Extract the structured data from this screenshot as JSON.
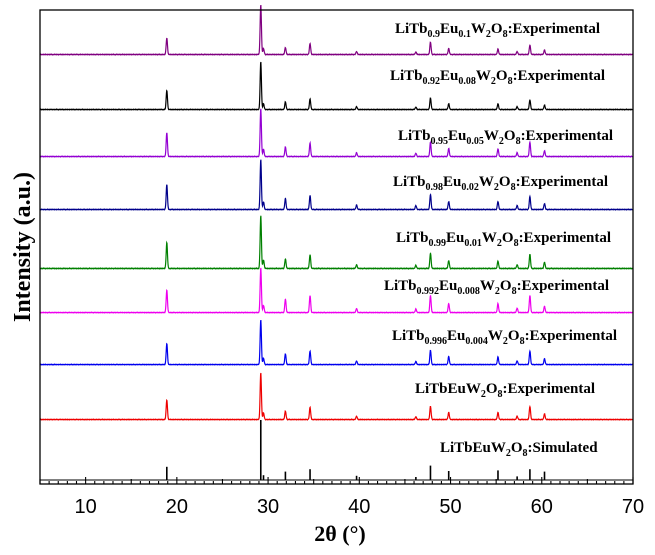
{
  "chart_data": {
    "type": "line",
    "xlabel": "2θ (°)",
    "ylabel": "Intensity (a.u.)",
    "xlim": [
      5,
      70
    ],
    "xticks": [
      10,
      20,
      30,
      40,
      50,
      60,
      70
    ],
    "grid": false,
    "legend": "none",
    "peaks_2theta": [
      18.9,
      29.2,
      29.5,
      31.9,
      34.6,
      39.7,
      46.2,
      47.8,
      49.8,
      55.2,
      57.3,
      58.7,
      60.3
    ],
    "series": [
      {
        "name_parts": [
          [
            "LiTb",
            ""
          ],
          [
            "0.9",
            "sub"
          ],
          [
            "Eu",
            ""
          ],
          [
            "0.1",
            "sub"
          ],
          [
            "W",
            ""
          ],
          [
            "2",
            "sub"
          ],
          [
            "O",
            ""
          ],
          [
            "8",
            "sub"
          ],
          [
            ":Experimental",
            ""
          ]
        ],
        "color": "#800080",
        "intensities": [
          0.33,
          1.0,
          0.12,
          0.14,
          0.22,
          0.06,
          0.05,
          0.25,
          0.12,
          0.11,
          0.06,
          0.19,
          0.09
        ]
      },
      {
        "name_parts": [
          [
            "LiTb",
            ""
          ],
          [
            "0.92",
            "sub"
          ],
          [
            "Eu",
            ""
          ],
          [
            "0.08",
            "sub"
          ],
          [
            "W",
            ""
          ],
          [
            "2",
            "sub"
          ],
          [
            "O",
            ""
          ],
          [
            "8",
            "sub"
          ],
          [
            ":Experimental",
            ""
          ]
        ],
        "color": "#000000",
        "intensities": [
          0.4,
          1.0,
          0.12,
          0.16,
          0.22,
          0.06,
          0.05,
          0.24,
          0.12,
          0.12,
          0.06,
          0.2,
          0.09
        ]
      },
      {
        "name_parts": [
          [
            "LiTb",
            ""
          ],
          [
            "0.95",
            "sub"
          ],
          [
            "Eu",
            ""
          ],
          [
            "0.05",
            "sub"
          ],
          [
            "W",
            ""
          ],
          [
            "2",
            "sub"
          ],
          [
            "O",
            ""
          ],
          [
            "8",
            "sub"
          ],
          [
            ":Experimental",
            ""
          ]
        ],
        "color": "#9400d3",
        "intensities": [
          0.5,
          1.0,
          0.15,
          0.2,
          0.28,
          0.08,
          0.07,
          0.3,
          0.17,
          0.16,
          0.08,
          0.3,
          0.12
        ]
      },
      {
        "name_parts": [
          [
            "LiTb",
            ""
          ],
          [
            "0.98",
            "sub"
          ],
          [
            "Eu",
            ""
          ],
          [
            "0.02",
            "sub"
          ],
          [
            "W",
            ""
          ],
          [
            "2",
            "sub"
          ],
          [
            "O",
            ""
          ],
          [
            "8",
            "sub"
          ],
          [
            ":Experimental",
            ""
          ]
        ],
        "color": "#00008b",
        "intensities": [
          0.5,
          1.0,
          0.15,
          0.22,
          0.28,
          0.09,
          0.08,
          0.3,
          0.16,
          0.16,
          0.08,
          0.26,
          0.12
        ]
      },
      {
        "name_parts": [
          [
            "LiTb",
            ""
          ],
          [
            "0.99",
            "sub"
          ],
          [
            "Eu",
            ""
          ],
          [
            "0.01",
            "sub"
          ],
          [
            "W",
            ""
          ],
          [
            "2",
            "sub"
          ],
          [
            "O",
            ""
          ],
          [
            "8",
            "sub"
          ],
          [
            ":Experimental",
            ""
          ]
        ],
        "color": "#008000",
        "intensities": [
          0.49,
          1.0,
          0.16,
          0.18,
          0.26,
          0.07,
          0.06,
          0.29,
          0.15,
          0.14,
          0.07,
          0.27,
          0.12
        ]
      },
      {
        "name_parts": [
          [
            "LiTb",
            ""
          ],
          [
            "0.992",
            "sub"
          ],
          [
            "Eu",
            ""
          ],
          [
            "0.008",
            "sub"
          ],
          [
            "W",
            ""
          ],
          [
            "2",
            "sub"
          ],
          [
            "O",
            ""
          ],
          [
            "8",
            "sub"
          ],
          [
            ":Experimental",
            ""
          ]
        ],
        "color": "#ee00ee",
        "intensities": [
          0.5,
          1.0,
          0.16,
          0.3,
          0.38,
          0.09,
          0.08,
          0.38,
          0.2,
          0.2,
          0.1,
          0.38,
          0.14
        ]
      },
      {
        "name_parts": [
          [
            "LiTb",
            ""
          ],
          [
            "0.996",
            "sub"
          ],
          [
            "Eu",
            ""
          ],
          [
            "0.004",
            "sub"
          ],
          [
            "W",
            ""
          ],
          [
            "2",
            "sub"
          ],
          [
            "O",
            ""
          ],
          [
            "8",
            "sub"
          ],
          [
            ":Experimental",
            ""
          ]
        ],
        "color": "#0000ee",
        "intensities": [
          0.47,
          1.0,
          0.14,
          0.24,
          0.3,
          0.08,
          0.07,
          0.32,
          0.18,
          0.17,
          0.08,
          0.3,
          0.13
        ]
      },
      {
        "name_parts": [
          [
            "LiTbEuW",
            ""
          ],
          [
            "2",
            "sub"
          ],
          [
            "O",
            ""
          ],
          [
            "8",
            "sub"
          ],
          [
            ":Experimental",
            ""
          ]
        ],
        "color": "#ee0000",
        "intensities": [
          0.42,
          1.0,
          0.14,
          0.18,
          0.26,
          0.07,
          0.06,
          0.28,
          0.15,
          0.15,
          0.07,
          0.28,
          0.12
        ]
      },
      {
        "name_parts": [
          [
            "LiTbEuW",
            ""
          ],
          [
            "2",
            "sub"
          ],
          [
            "O",
            ""
          ],
          [
            "8",
            "sub"
          ],
          [
            ":Simulated",
            ""
          ]
        ],
        "color": "#000000",
        "style": "sticks",
        "intensities": [
          0.22,
          1.0,
          0.08,
          0.14,
          0.18,
          0.07,
          0.05,
          0.24,
          0.15,
          0.16,
          0.06,
          0.18,
          0.14
        ]
      }
    ]
  }
}
